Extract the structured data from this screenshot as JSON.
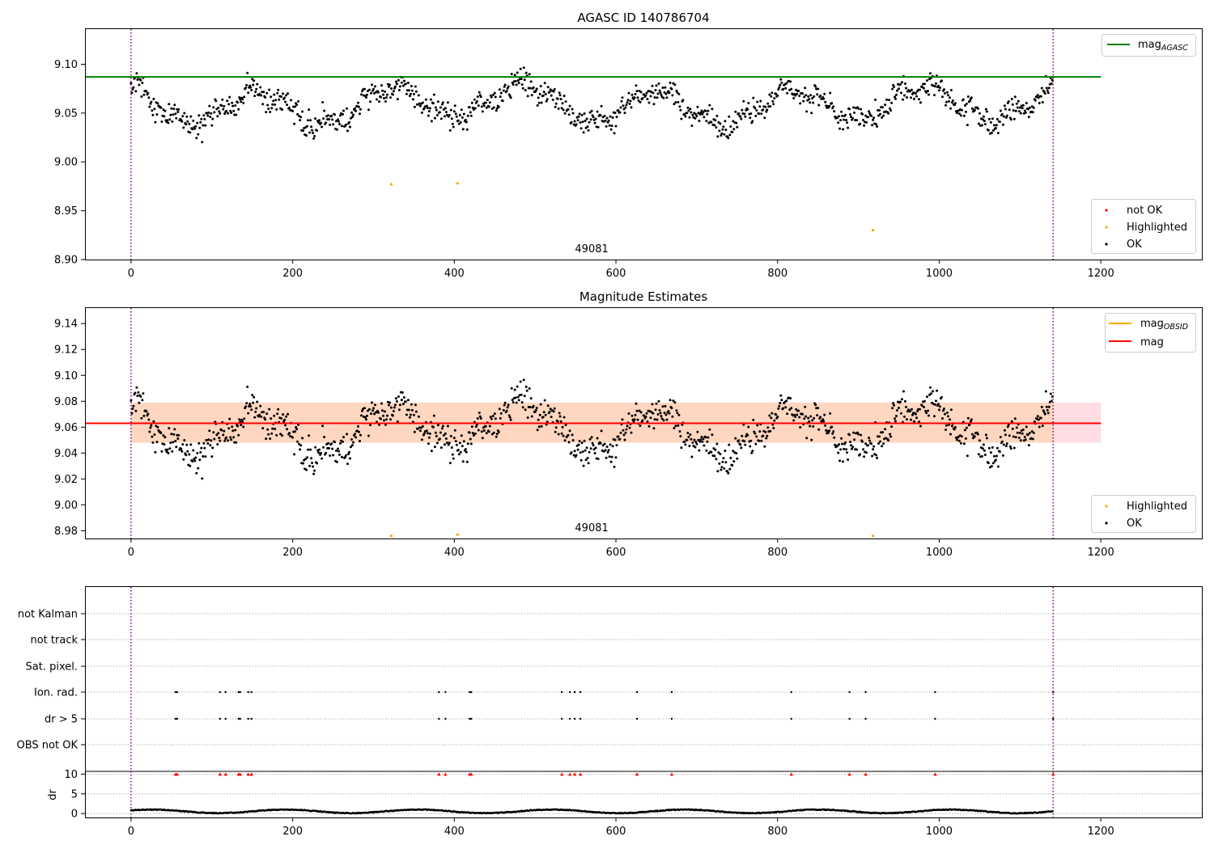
{
  "chart_data": [
    {
      "type": "scatter",
      "title": "AGASC ID 140786704",
      "xlim": [
        -57,
        1325
      ],
      "ylim": [
        8.9,
        9.136
      ],
      "x_ticks": [
        0,
        200,
        400,
        600,
        800,
        1000,
        1200
      ],
      "y_ticks": [
        8.9,
        8.95,
        9.0,
        9.05,
        9.1
      ],
      "x_tick_labels": [
        "0",
        "200",
        "400",
        "600",
        "800",
        "1000",
        "1200"
      ],
      "y_tick_labels": [
        "8.90",
        "8.95",
        "9.00",
        "9.05",
        "9.10"
      ],
      "obsid_label": {
        "text": "49081",
        "x": 570
      },
      "obs_boundaries": [
        0,
        1141
      ],
      "mag_agasc": 9.087,
      "mag_line_x": [
        -57,
        1200
      ],
      "series_model": {
        "n": 1141,
        "base": 9.058,
        "noise": 0.011
      },
      "highlighted_points": [
        [
          322,
          8.977
        ],
        [
          404,
          8.978
        ],
        [
          918,
          8.93
        ]
      ],
      "legend_lines": [
        {
          "label_main": "mag",
          "label_sub": "AGASC",
          "color": "#008000"
        }
      ],
      "legend_markers": [
        {
          "label": "not OK",
          "color": "#ff0000"
        },
        {
          "label": "Highlighted",
          "color": "#ffa500"
        },
        {
          "label": "OK",
          "color": "#000000"
        }
      ]
    },
    {
      "type": "scatter",
      "title": "Magnitude Estimates",
      "xlim": [
        -57,
        1325
      ],
      "ylim": [
        8.974,
        9.152
      ],
      "x_ticks": [
        0,
        200,
        400,
        600,
        800,
        1000,
        1200
      ],
      "y_ticks": [
        8.98,
        9.0,
        9.02,
        9.04,
        9.06,
        9.08,
        9.1,
        9.12,
        9.14
      ],
      "x_tick_labels": [
        "0",
        "200",
        "400",
        "600",
        "800",
        "1000",
        "1200"
      ],
      "y_tick_labels": [
        "8.98",
        "9.00",
        "9.02",
        "9.04",
        "9.06",
        "9.08",
        "9.10",
        "9.12",
        "9.14"
      ],
      "obsid_label": {
        "text": "49081",
        "x": 570
      },
      "obs_boundaries": [
        0,
        1141
      ],
      "mag": 9.063,
      "mag_obsid": 9.063,
      "band_pink": [
        9.048,
        9.079,
        0,
        1200
      ],
      "band_orange": [
        9.048,
        9.079,
        0,
        1141
      ],
      "highlighted_points": [
        [
          322,
          8.976
        ],
        [
          404,
          8.977
        ],
        [
          918,
          8.976
        ]
      ],
      "legend_lines": [
        {
          "label_main": "mag",
          "label_sub": "OBSID",
          "color": "#ffa500"
        },
        {
          "label_main": "mag",
          "label_sub": "",
          "color": "#ff0000"
        }
      ],
      "legend_markers": [
        {
          "label": "Highlighted",
          "color": "#ffa500"
        },
        {
          "label": "OK",
          "color": "#000000"
        }
      ]
    },
    {
      "type": "scatter",
      "title": "",
      "xlim": [
        -57,
        1325
      ],
      "categories": [
        "not Kalman",
        "not track",
        "Sat. pixel.",
        "Ion. rad.",
        "dr > 5",
        "OBS not OK"
      ],
      "flag_x": [
        55,
        57,
        110,
        117,
        133,
        135,
        145,
        149,
        381,
        389,
        419,
        421,
        533,
        543,
        549,
        556,
        626,
        669,
        817,
        889,
        909,
        995,
        1141
      ],
      "flag_rows": [
        "Ion. rad.",
        "dr > 5"
      ],
      "dr_ylabel": "dr",
      "dr_ylim": [
        -1,
        10.7
      ],
      "dr_y_ticks": [
        0,
        5,
        10
      ],
      "dr_y_tick_labels": [
        "0",
        "5",
        "10"
      ],
      "dr_clip": 10,
      "x_tick_labels": [
        "0",
        "200",
        "400",
        "600",
        "800",
        "1000",
        "1200"
      ]
    }
  ],
  "colors": {
    "ok": "#000000",
    "highlighted": "#ffa500",
    "not_ok": "#ff0000",
    "boundary": "#800080",
    "agasc_line": "#008000",
    "mag_line": "#ff0000",
    "band_pink": "#ffdde3",
    "band_orange": "#ffd6c0"
  }
}
